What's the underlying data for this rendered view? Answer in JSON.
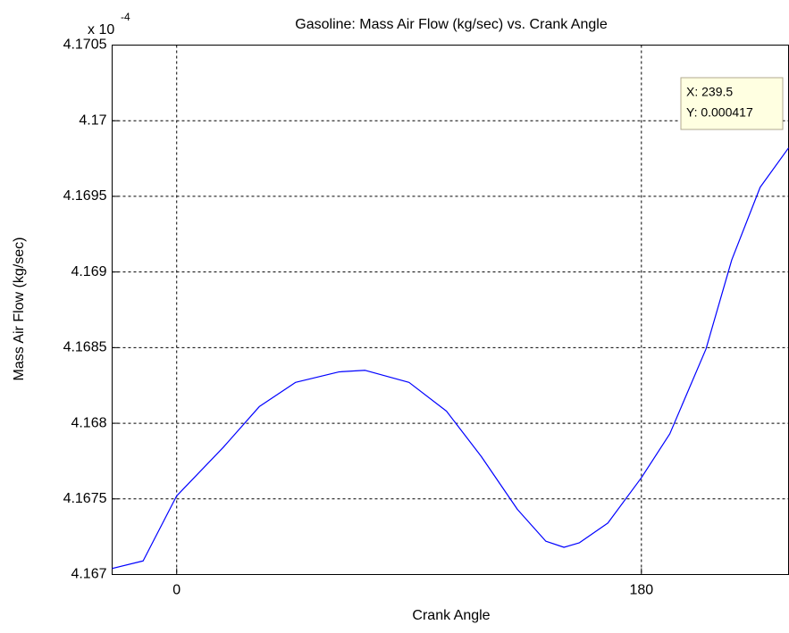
{
  "chart_data": {
    "type": "line",
    "title": "Gasoline: Mass Air Flow (kg/sec) vs. Crank Angle",
    "x_label": "Crank Angle",
    "y_label": "Mass Air Flow (kg/sec)",
    "y_exponent_base": "x 10",
    "y_exponent_power": "-4",
    "x": [
      -25,
      -13,
      0,
      18,
      32,
      46,
      63,
      73,
      90,
      104.5,
      118,
      132,
      143,
      150,
      156,
      167,
      180,
      191,
      205,
      215,
      226,
      237
    ],
    "series": [
      {
        "name": "Mass Air Flow",
        "color": "#0000ff",
        "values": [
          4.16704,
          4.16709,
          4.16752,
          4.16784,
          4.16811,
          4.16827,
          4.16834,
          4.16835,
          4.16827,
          4.16808,
          4.16778,
          4.16743,
          4.16722,
          4.16718,
          4.16721,
          4.16734,
          4.16764,
          4.16793,
          4.16849,
          4.16908,
          4.16956,
          4.16982
        ]
      }
    ],
    "xlim": [
      -25,
      237
    ],
    "xticks": [
      0,
      180
    ],
    "ylim": [
      4.167,
      4.1705
    ],
    "yticks": [
      4.167,
      4.1675,
      4.168,
      4.1685,
      4.169,
      4.1695,
      4.17,
      4.1705
    ],
    "grid": true,
    "datatip": {
      "x_text": "X: 239.5",
      "y_text": "Y: 0.000417"
    }
  }
}
